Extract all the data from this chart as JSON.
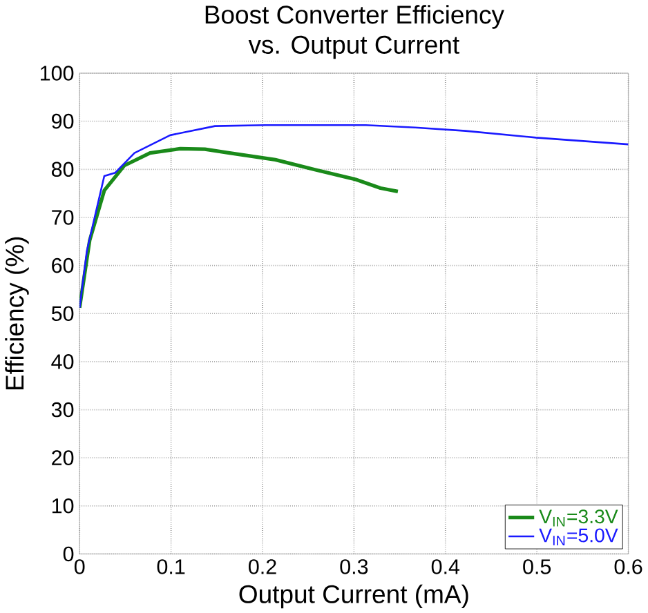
{
  "chart_data": {
    "type": "line",
    "title": "Boost Converter Efficiency\nvs. Output Current",
    "xlabel": "Output Current (mA)",
    "ylabel": "Efficiency  (%)",
    "xlim": [
      0,
      0.6
    ],
    "ylim": [
      0,
      100
    ],
    "xticks": [
      0,
      0.1,
      0.2,
      0.3,
      0.4,
      0.5,
      0.6
    ],
    "yticks": [
      0,
      10,
      20,
      30,
      40,
      50,
      60,
      70,
      80,
      90,
      100
    ],
    "grid": true,
    "legend": "bottom right",
    "series": [
      {
        "name": "V$_{IN}$=3.3V",
        "color": "#1a8a1a",
        "x": [
          0,
          0.011,
          0.027,
          0.049,
          0.077,
          0.11,
          0.137,
          0.164,
          0.214,
          0.258,
          0.302,
          0.329,
          0.348
        ],
        "values": [
          51.2,
          65.2,
          75.6,
          80.8,
          83.4,
          84.3,
          84.2,
          83.4,
          82.0,
          79.9,
          77.9,
          76.1,
          75.4
        ]
      },
      {
        "name": "V$_{IN}$=5.0V",
        "color": "#1a1aff",
        "x": [
          0,
          0.008,
          0.027,
          0.039,
          0.06,
          0.099,
          0.148,
          0.203,
          0.313,
          0.367,
          0.422,
          0.499,
          0.6
        ],
        "values": [
          51.2,
          63.1,
          78.6,
          79.3,
          83.4,
          87.1,
          89.0,
          89.2,
          89.2,
          88.7,
          88.0,
          86.6,
          85.2
        ]
      }
    ]
  }
}
